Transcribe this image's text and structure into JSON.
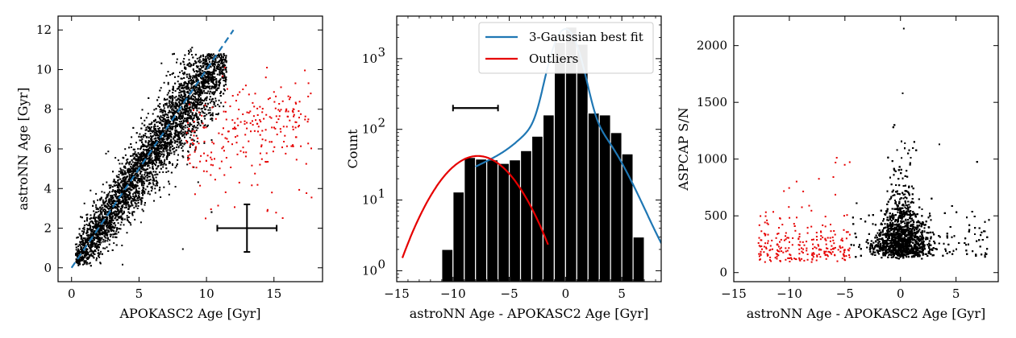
{
  "chart_data": [
    {
      "type": "scatter",
      "xlabel": "APOKASC2 Age [Gyr]",
      "ylabel": "astroNN Age [Gyr]",
      "xlim": [
        -1,
        18.6
      ],
      "ylim": [
        -0.7,
        12.7
      ],
      "xticks": [
        0,
        5,
        10,
        15
      ],
      "yticks": [
        0,
        2,
        4,
        6,
        8,
        10,
        12
      ],
      "grid": false,
      "one_to_one_line": {
        "x": [
          0,
          12
        ],
        "y": [
          0,
          12
        ],
        "color": "#1f77b4",
        "style": "dashed"
      },
      "main_cloud": {
        "color": "#000000",
        "description_relation": "y approx x, scatter about 1 Gyr",
        "x_range": [
          0.3,
          11.5
        ]
      },
      "outliers": {
        "color": "#e60000",
        "x_range": [
          8.5,
          17.8
        ],
        "y_range": [
          2.2,
          10.1
        ]
      },
      "errorbar": {
        "x": 13,
        "y": 2,
        "xerr": 2.2,
        "yerr": 1.2,
        "color": "#000000"
      }
    },
    {
      "type": "bar",
      "xlabel": "astroNN Age - APOKASC2 Age [Gyr]",
      "ylabel": "Count",
      "xlim": [
        -15,
        8.5
      ],
      "ylim_log": [
        0.7,
        4000
      ],
      "yscale": "log",
      "xticks": [
        -15,
        -10,
        -5,
        0,
        5
      ],
      "ytick_labels": [
        "10^0",
        "10^1",
        "10^2",
        "10^3"
      ],
      "bin_edges": [
        -11,
        -10,
        -9,
        -8,
        -7,
        -6,
        -5,
        -4,
        -3,
        -2,
        -1,
        0,
        1,
        2,
        3,
        4,
        5,
        6,
        7
      ],
      "counts": [
        2,
        13,
        40,
        38,
        37,
        33,
        37,
        50,
        80,
        160,
        1700,
        2800,
        1600,
        170,
        160,
        90,
        45,
        3
      ],
      "series": [
        {
          "name": "3-Gaussian best fit",
          "color": "#1f77b4"
        },
        {
          "name": "Outliers",
          "color": "#e60000"
        }
      ],
      "legend_location": "top-right",
      "errorbar_horizontal": {
        "x": -8,
        "y": 200,
        "xerr": 2
      }
    },
    {
      "type": "scatter",
      "xlabel": "astroNN Age - APOKASC2 Age [Gyr]",
      "ylabel": "ASPCAP S/N",
      "xlim": [
        -15,
        8.8
      ],
      "ylim": [
        -80,
        2260
      ],
      "xticks": [
        -15,
        -10,
        -5,
        0,
        5
      ],
      "yticks": [
        0,
        500,
        1000,
        1500,
        2000
      ],
      "grid": false,
      "main_cloud": {
        "color": "#000000",
        "x_range": [
          -5,
          8
        ],
        "y_range": [
          40,
          2150
        ]
      },
      "outliers": {
        "color": "#e60000",
        "x_range": [
          -13,
          -4.5
        ],
        "y_range": [
          50,
          1070
        ]
      }
    }
  ],
  "text": {
    "p1_xlabel": "APOKASC2 Age [Gyr]",
    "p1_ylabel": "astroNN Age [Gyr]",
    "p2_xlabel": "astroNN Age - APOKASC2 Age [Gyr]",
    "p2_ylabel": "Count",
    "p3_xlabel": "astroNN Age - APOKASC2 Age [Gyr]",
    "p3_ylabel": "ASPCAP S/N",
    "legend1": "3-Gaussian best fit",
    "legend2": "Outliers"
  }
}
